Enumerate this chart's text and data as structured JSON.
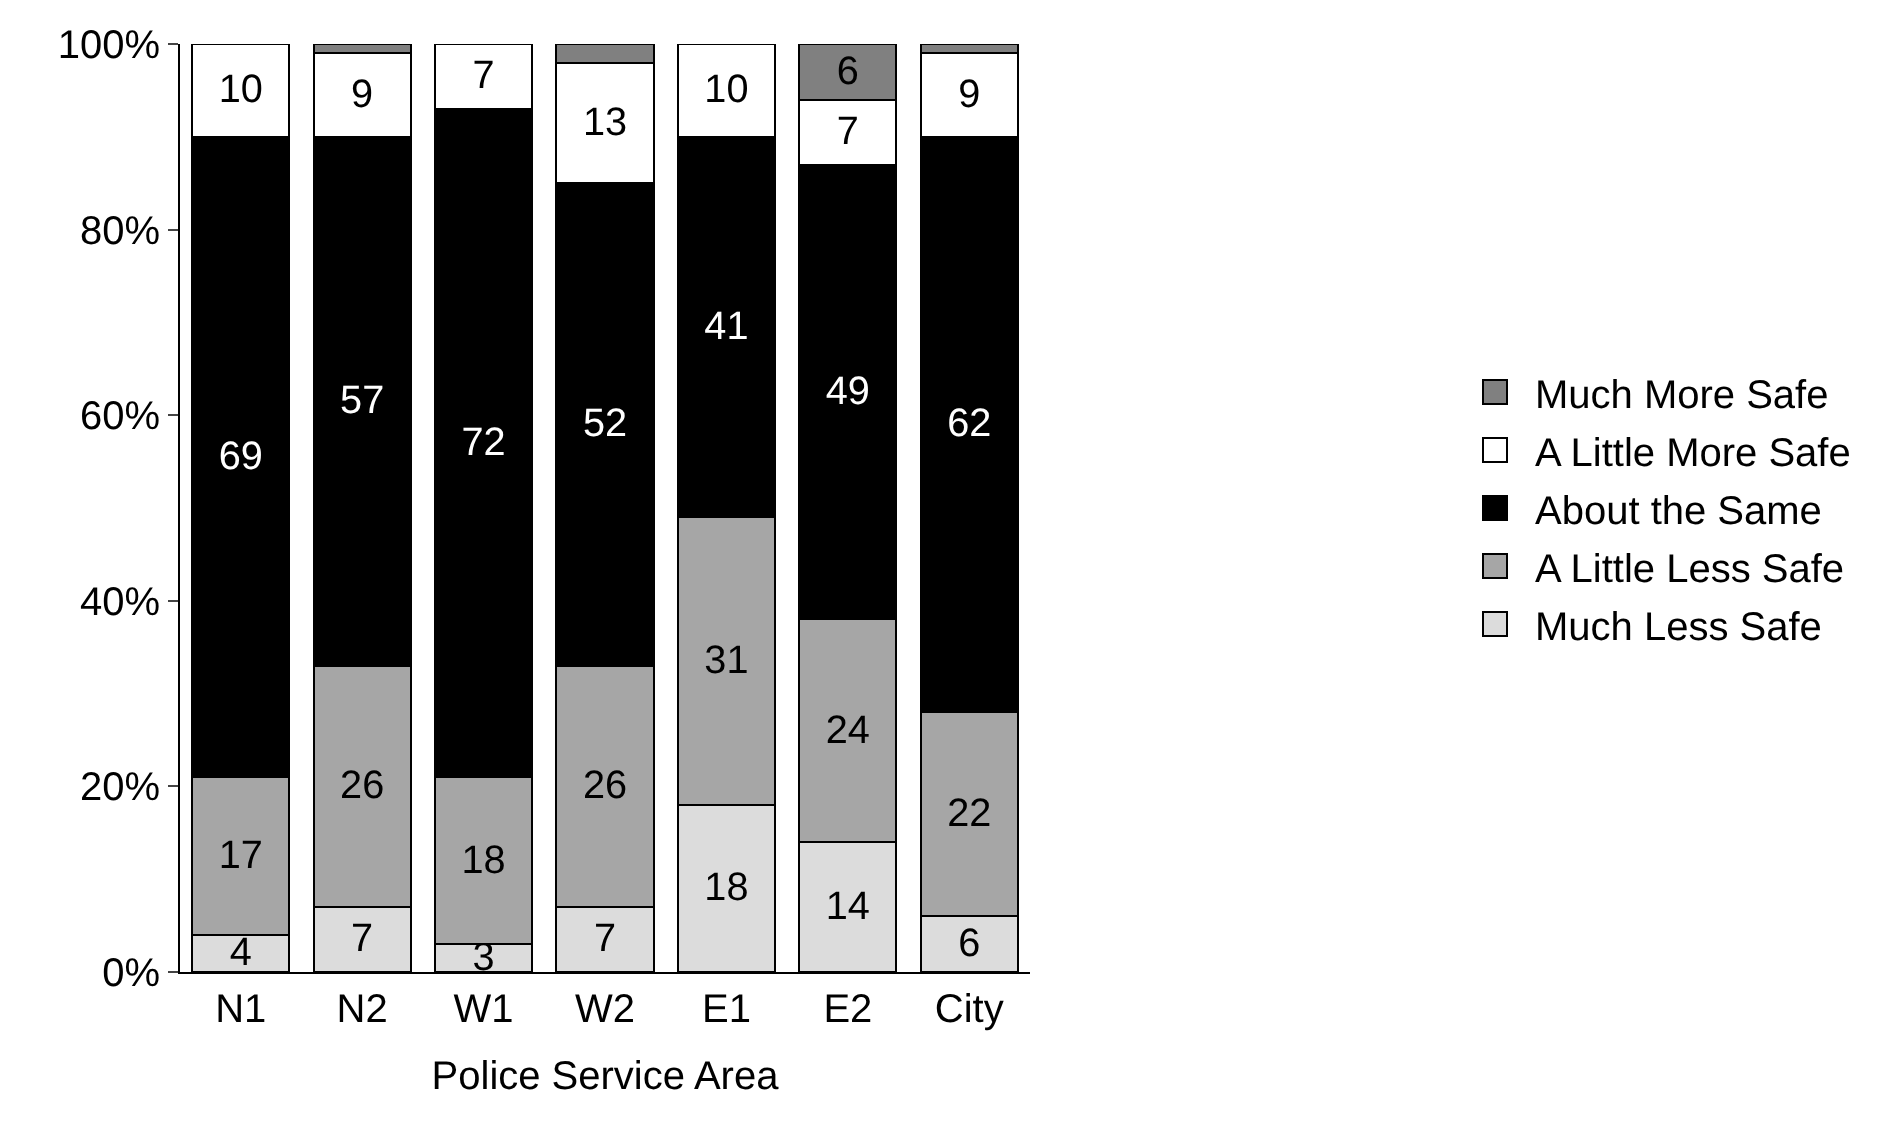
{
  "chart_data": {
    "type": "bar",
    "stacked": true,
    "xlabel": "Police Service Area",
    "categories": [
      "N1",
      "N2",
      "W1",
      "W2",
      "E1",
      "E2",
      "City"
    ],
    "ylim": [
      0,
      100
    ],
    "yticks": [
      {
        "value": 0,
        "label": "0%"
      },
      {
        "value": 20,
        "label": "20%"
      },
      {
        "value": 40,
        "label": "40%"
      },
      {
        "value": 60,
        "label": "60%"
      },
      {
        "value": 80,
        "label": "80%"
      },
      {
        "value": 100,
        "label": "100%"
      }
    ],
    "grid": false,
    "legend": "right",
    "series": [
      {
        "name": "Much Less Safe",
        "color": "#dcdcdc",
        "values": [
          4,
          7,
          3,
          7,
          18,
          14,
          6
        ],
        "value_labels": [
          "4",
          "7",
          "3",
          "7",
          "18",
          "14",
          "6"
        ]
      },
      {
        "name": "A Little Less Safe",
        "color": "#a6a6a6",
        "values": [
          17,
          26,
          18,
          26,
          31,
          24,
          22
        ],
        "value_labels": [
          "17",
          "26",
          "18",
          "26",
          "31",
          "24",
          "22"
        ]
      },
      {
        "name": "About the Same",
        "color": "#000000",
        "values": [
          69,
          57,
          72,
          52,
          41,
          49,
          62
        ],
        "value_labels": [
          "69",
          "57",
          "72",
          "52",
          "41",
          "49",
          "62"
        ]
      },
      {
        "name": "A Little More Safe",
        "color": "#ffffff",
        "values": [
          10,
          9,
          7,
          13,
          10,
          7,
          9
        ],
        "value_labels": [
          "10",
          "9",
          "7",
          "13",
          "10",
          "7",
          "9"
        ]
      },
      {
        "name": "Much More Safe",
        "color": "#808080",
        "values": [
          null,
          1,
          null,
          2,
          null,
          6,
          1
        ],
        "value_labels": [
          null,
          null,
          null,
          null,
          null,
          "6",
          null
        ]
      }
    ]
  }
}
